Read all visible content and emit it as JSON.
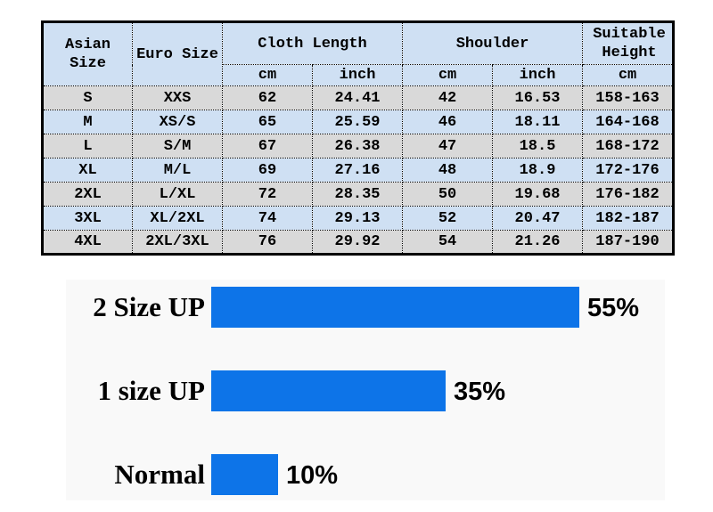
{
  "table": {
    "header": {
      "asian_size": "Asian\nSize",
      "euro_size": "Euro Size",
      "cloth_length": "Cloth Length",
      "shoulder": "Shoulder",
      "suitable_height": "Suitable\nHeight",
      "unit_cm": "cm",
      "unit_inch": "inch"
    },
    "rows": [
      [
        "S",
        "XXS",
        "62",
        "24.41",
        "42",
        "16.53",
        "158-163"
      ],
      [
        "M",
        "XS/S",
        "65",
        "25.59",
        "46",
        "18.11",
        "164-168"
      ],
      [
        "L",
        "S/M",
        "67",
        "26.38",
        "47",
        "18.5",
        "168-172"
      ],
      [
        "XL",
        "M/L",
        "69",
        "27.16",
        "48",
        "18.9",
        "172-176"
      ],
      [
        "2XL",
        "L/XL",
        "72",
        "28.35",
        "50",
        "19.68",
        "176-182"
      ],
      [
        "3XL",
        "XL/2XL",
        "74",
        "29.13",
        "52",
        "20.47",
        "182-187"
      ],
      [
        "4XL",
        "2XL/3XL",
        "76",
        "29.92",
        "54",
        "21.26",
        "187-190"
      ]
    ]
  },
  "chart_data": [
    {
      "type": "table",
      "title": "Size chart",
      "columns": [
        "Asian Size",
        "Euro Size",
        "Cloth Length cm",
        "Cloth Length inch",
        "Shoulder cm",
        "Shoulder inch",
        "Suitable Height cm"
      ],
      "rows": [
        [
          "S",
          "XXS",
          62,
          24.41,
          42,
          16.53,
          "158-163"
        ],
        [
          "M",
          "XS/S",
          65,
          25.59,
          46,
          18.11,
          "164-168"
        ],
        [
          "L",
          "S/M",
          67,
          26.38,
          47,
          18.5,
          "168-172"
        ],
        [
          "XL",
          "M/L",
          69,
          27.16,
          48,
          18.9,
          "172-176"
        ],
        [
          "2XL",
          "L/XL",
          72,
          28.35,
          50,
          19.68,
          "176-182"
        ],
        [
          "3XL",
          "XL/2XL",
          74,
          29.13,
          52,
          20.47,
          "182-187"
        ],
        [
          "4XL",
          "2XL/3XL",
          76,
          29.92,
          54,
          21.26,
          "187-190"
        ]
      ]
    },
    {
      "type": "bar",
      "orientation": "horizontal",
      "categories": [
        "2 Size UP",
        "1 size UP",
        "Normal"
      ],
      "values": [
        55,
        35,
        10
      ],
      "value_labels": [
        "55%",
        "35%",
        "10%"
      ],
      "xlim": [
        0,
        100
      ],
      "grid": false,
      "legend": false,
      "bar_color": "#0d74e8"
    }
  ],
  "colors": {
    "bar_blue": "#0d74e8",
    "row_blue": "#cfe0f3",
    "row_gray": "#d9d9d9",
    "border_black": "#000000",
    "page_bg": "#ffffff"
  }
}
